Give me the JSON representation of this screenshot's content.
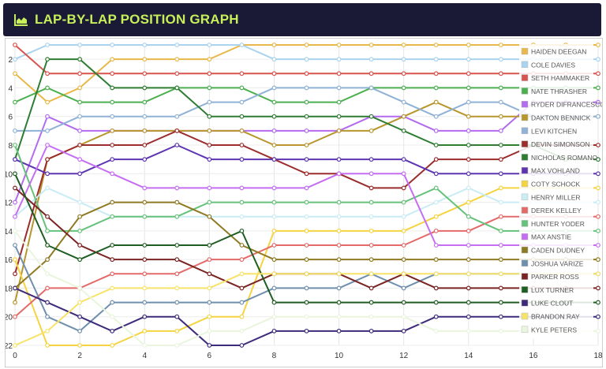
{
  "header": {
    "title": "LAP-BY-LAP POSITION GRAPH",
    "icon": "area-chart-icon",
    "bg": "#1a1936",
    "title_color": "#c7ef5a"
  },
  "chart_data": {
    "type": "line",
    "title": "LAP-BY-LAP POSITION GRAPH",
    "xlabel": "",
    "ylabel": "",
    "xlim": [
      0,
      18
    ],
    "ylim": [
      22,
      1
    ],
    "x_ticks": [
      0,
      2,
      4,
      6,
      8,
      10,
      12,
      14,
      16,
      18
    ],
    "y_ticks": [
      2,
      4,
      6,
      8,
      10,
      12,
      14,
      16,
      18,
      20,
      22
    ],
    "grid": true,
    "legend_position": "right",
    "x": [
      0,
      1,
      2,
      3,
      4,
      5,
      6,
      7,
      8,
      9,
      10,
      11,
      12,
      13,
      14,
      15,
      16,
      17,
      18
    ],
    "series": [
      {
        "name": "HAIDEN DEEGAN",
        "color": "#e8b84a",
        "values": [
          3,
          5,
          4,
          2,
          2,
          2,
          2,
          1,
          1,
          1,
          1,
          1,
          1,
          1,
          1,
          1,
          1,
          1,
          1
        ]
      },
      {
        "name": "COLE DAVIES",
        "color": "#a9d3ee",
        "values": [
          2,
          1,
          1,
          1,
          1,
          1,
          1,
          1,
          2,
          2,
          2,
          2,
          2,
          2,
          2,
          2,
          2,
          2,
          2
        ]
      },
      {
        "name": "SETH HAMMAKER",
        "color": "#d9534f",
        "values": [
          1,
          3,
          3,
          3,
          3,
          3,
          3,
          3,
          3,
          3,
          3,
          3,
          3,
          3,
          3,
          3,
          3,
          3,
          3
        ]
      },
      {
        "name": "NATE THRASHER",
        "color": "#4caf50",
        "values": [
          5,
          4,
          5,
          5,
          5,
          4,
          4,
          4,
          5,
          5,
          5,
          4,
          4,
          4,
          4,
          4,
          4,
          4,
          4
        ]
      },
      {
        "name": "RYDER DIFRANCESCO",
        "color": "#b36bef",
        "values": [
          12,
          6,
          7,
          7,
          7,
          7,
          7,
          7,
          7,
          7,
          7,
          6,
          6,
          7,
          7,
          7,
          5,
          5,
          5
        ]
      },
      {
        "name": "DAKTON BENNICK",
        "color": "#b8962e",
        "values": [
          19,
          9,
          8,
          7,
          7,
          7,
          7,
          7,
          8,
          8,
          7,
          7,
          6,
          5,
          6,
          6,
          6,
          6,
          6
        ]
      },
      {
        "name": "LEVI KITCHEN",
        "color": "#8fb2d6",
        "values": [
          7,
          7,
          6,
          6,
          6,
          6,
          5,
          5,
          4,
          4,
          4,
          4,
          5,
          6,
          5,
          5,
          6,
          6,
          6
        ]
      },
      {
        "name": "DEVIN SIMONSON",
        "color": "#9b2d2d",
        "values": [
          17,
          9,
          8,
          8,
          8,
          7,
          8,
          8,
          9,
          10,
          10,
          11,
          11,
          9,
          9,
          9,
          8,
          8,
          8
        ]
      },
      {
        "name": "NICHOLAS ROMANO",
        "color": "#2e7d32",
        "values": [
          9,
          2,
          2,
          4,
          4,
          4,
          6,
          6,
          6,
          6,
          6,
          6,
          7,
          8,
          8,
          8,
          8,
          9,
          9
        ]
      },
      {
        "name": "MAX VOHLAND",
        "color": "#5e35b1",
        "values": [
          9,
          10,
          10,
          9,
          9,
          8,
          9,
          9,
          9,
          9,
          9,
          9,
          9,
          10,
          10,
          10,
          10,
          10,
          10
        ]
      },
      {
        "name": "COTY SCHOCK",
        "color": "#f5d442",
        "values": [
          16,
          22,
          22,
          22,
          21,
          21,
          20,
          20,
          14,
          14,
          14,
          14,
          14,
          13,
          12,
          11,
          11,
          11,
          11
        ]
      },
      {
        "name": "HENRY MILLER",
        "color": "#c9ecf5",
        "values": [
          13,
          11,
          12,
          13,
          13,
          13,
          13,
          13,
          13,
          13,
          13,
          13,
          13,
          12,
          11,
          12,
          12,
          12,
          12
        ]
      },
      {
        "name": "DEREK KELLEY",
        "color": "#e46a6a",
        "values": [
          20,
          18,
          18,
          17,
          17,
          17,
          16,
          16,
          15,
          15,
          15,
          15,
          15,
          14,
          14,
          13,
          13,
          13,
          13
        ]
      },
      {
        "name": "HUNTER YODER",
        "color": "#66c27a",
        "values": [
          8,
          14,
          14,
          13,
          13,
          13,
          12,
          12,
          12,
          12,
          12,
          12,
          12,
          11,
          13,
          14,
          14,
          14,
          14
        ]
      },
      {
        "name": "MAX ANSTIE",
        "color": "#c56ef2",
        "values": [
          13,
          8,
          9,
          10,
          11,
          11,
          11,
          11,
          11,
          11,
          10,
          10,
          10,
          15,
          15,
          15,
          15,
          15,
          15
        ]
      },
      {
        "name": "CADEN DUDNEY",
        "color": "#8f7a24",
        "values": [
          18,
          16,
          13,
          12,
          12,
          12,
          13,
          15,
          16,
          16,
          16,
          16,
          16,
          16,
          16,
          16,
          16,
          16,
          16
        ]
      },
      {
        "name": "JOSHUA VARIZE",
        "color": "#6f8faf",
        "values": [
          15,
          20,
          21,
          19,
          19,
          19,
          19,
          19,
          18,
          18,
          18,
          17,
          18,
          17,
          17,
          17,
          17,
          17,
          17
        ]
      },
      {
        "name": "PARKER ROSS",
        "color": "#7b2424",
        "values": [
          11,
          13,
          15,
          16,
          16,
          16,
          17,
          18,
          17,
          17,
          17,
          18,
          17,
          18,
          18,
          18,
          18,
          18,
          18
        ]
      },
      {
        "name": "LUX TURNER",
        "color": "#1f5e22",
        "values": [
          10,
          15,
          16,
          15,
          15,
          15,
          15,
          14,
          19,
          19,
          19,
          19,
          19,
          19,
          19,
          19,
          19,
          19,
          19
        ]
      },
      {
        "name": "LUKE CLOUT",
        "color": "#3d2b7a",
        "values": [
          18,
          19,
          20,
          21,
          20,
          20,
          22,
          22,
          21,
          21,
          21,
          21,
          21,
          20,
          20,
          20,
          20,
          20,
          20
        ]
      },
      {
        "name": "BRANDON RAY",
        "color": "#f7e36a",
        "values": [
          22,
          21,
          19,
          18,
          18,
          18,
          18,
          17,
          17,
          17,
          17,
          17,
          17,
          17,
          17,
          17,
          17,
          17,
          17
        ]
      },
      {
        "name": "KYLE PETERS",
        "color": "#e9f5dc",
        "values": [
          14,
          17,
          18,
          20,
          22,
          22,
          21,
          21,
          20,
          20,
          20,
          20,
          20,
          21,
          21,
          21,
          21,
          21,
          21
        ]
      }
    ]
  }
}
